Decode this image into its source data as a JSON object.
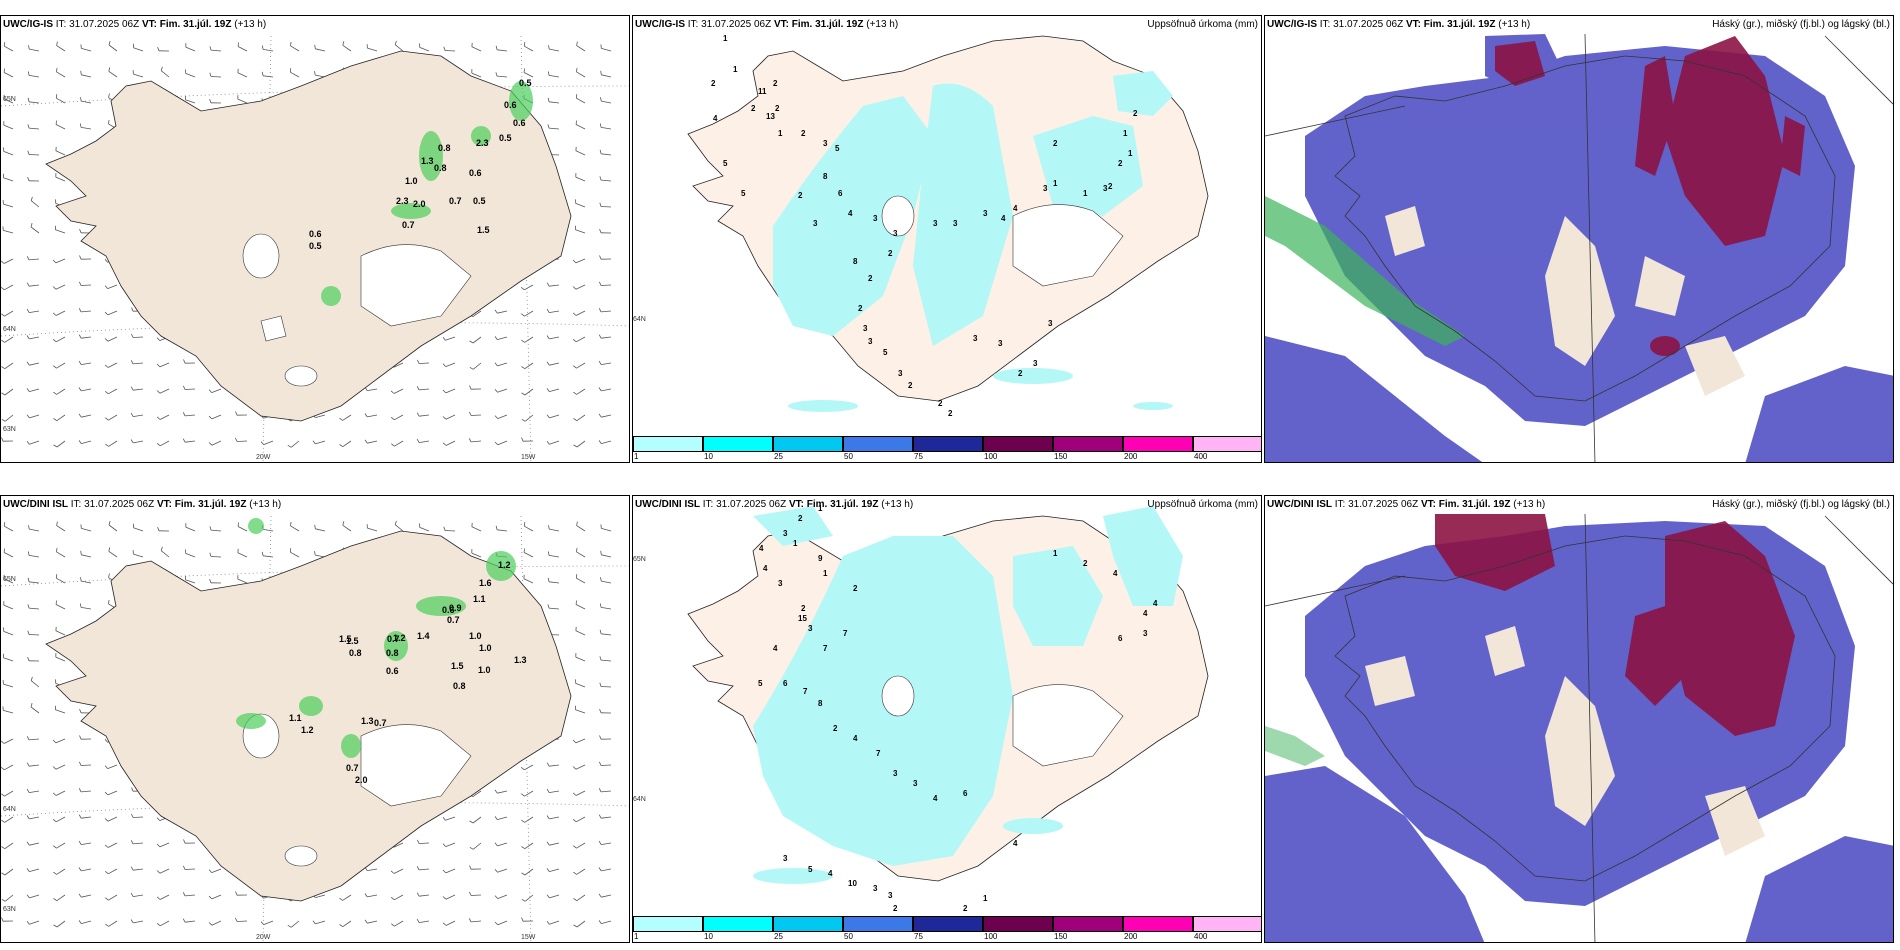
{
  "panels": [
    {
      "id": "p1",
      "model": "UWC/IG-IS",
      "it_label": "IT:",
      "it": "31.07.2025 06Z",
      "vt_label": "VT:",
      "vt": "Fim. 31.júl. 19Z",
      "lead": "(+13 h)",
      "title_right": "",
      "lat_labels": [
        "65N",
        "64N",
        "63N"
      ],
      "lon_labels": [
        "20W",
        "15W"
      ]
    },
    {
      "id": "p2",
      "model": "UWC/IG-IS",
      "it_label": "IT:",
      "it": "31.07.2025 06Z",
      "vt_label": "VT:",
      "vt": "Fim. 31.júl. 19Z",
      "lead": "(+13 h)",
      "title_right": "Uppsöfnuð úrkoma (mm)",
      "lat_labels": [
        "64N"
      ],
      "lon_labels": []
    },
    {
      "id": "p3",
      "model": "UWC/IG-IS",
      "it_label": "IT:",
      "it": "31.07.2025 06Z",
      "vt_label": "VT:",
      "vt": "Fim. 31.júl. 19Z",
      "lead": "(+13 h)",
      "title_right": "Háský (gr.), miðský (fj.bl.) og lágský (bl.)",
      "lat_labels": [],
      "lon_labels": []
    },
    {
      "id": "p4",
      "model": "UWC/DINI ISL",
      "it_label": "IT:",
      "it": "31.07.2025 06Z",
      "vt_label": "VT:",
      "vt": "Fim. 31.júl. 19Z",
      "lead": "(+13 h)",
      "title_right": "",
      "lat_labels": [
        "65N",
        "64N",
        "63N"
      ],
      "lon_labels": [
        "20W",
        "15W"
      ]
    },
    {
      "id": "p5",
      "model": "UWC/DINI ISL",
      "it_label": "IT:",
      "it": "31.07.2025 06Z",
      "vt_label": "VT:",
      "vt": "Fim. 31.júl. 19Z",
      "lead": "(+13 h)",
      "title_right": "Uppsöfnuð úrkoma (mm)",
      "lat_labels": [
        "65N",
        "64N"
      ],
      "lon_labels": []
    },
    {
      "id": "p6",
      "model": "UWC/DINI ISL",
      "it_label": "IT:",
      "it": "31.07.2025 06Z",
      "vt_label": "VT:",
      "vt": "Fim. 31.júl. 19Z",
      "lead": "(+13 h)",
      "title_right": "Háský (gr.), miðský (fj.bl.) og lágský (bl.)",
      "lat_labels": [],
      "lon_labels": []
    }
  ],
  "colorbar": {
    "ticks": [
      "1",
      "10",
      "25",
      "50",
      "75",
      "100",
      "150",
      "200",
      "400"
    ],
    "colors": [
      "#b3ffff",
      "#00ffff",
      "#00c8f0",
      "#3c78e6",
      "#1e2896",
      "#6e0050",
      "#a0007a",
      "#ff00b4",
      "#ffb4f5"
    ]
  },
  "colors": {
    "land": "#f2e6d8",
    "land_p2": "#fdf0e6",
    "precip": "#b3f7f7",
    "green": "#4ccf5c",
    "lowcloud": "#5a5ac8",
    "midcloud": "#3c6ef0",
    "highcloud": "#8c1444",
    "cloudbg": "#ffffff"
  },
  "panel1_labels": [
    "0.5",
    "0.6",
    "0.6",
    "0.5",
    "0.8",
    "2.3",
    "1.3",
    "0.6",
    "1.0",
    "0.8",
    "0.7",
    "0.5",
    "2.3",
    "2.0",
    "0.7",
    "1.5",
    "0.6",
    "0.5"
  ],
  "panel4_labels": [
    "1.2",
    "1.6",
    "1.1",
    "0.7",
    "0.6",
    "1.5",
    "1.0",
    "0.9",
    "1.4",
    "0.8",
    "0.7",
    "1.0",
    "1.5",
    "0.8",
    "1.2",
    "0.6",
    "1.0",
    "1.5",
    "1.3",
    "0.8",
    "1.1",
    "1.2",
    "1.3",
    "0.7",
    "0.7",
    "2.0"
  ],
  "panel2_labels": [
    "1",
    "1",
    "2",
    "2",
    "2",
    "2",
    "1",
    "2",
    "4",
    "11",
    "13",
    "3",
    "5",
    "8",
    "6",
    "5",
    "5",
    "2",
    "3",
    "4",
    "3",
    "3",
    "2",
    "8",
    "2",
    "3",
    "3",
    "3",
    "4",
    "4",
    "2",
    "3",
    "3",
    "5",
    "3",
    "2",
    "2",
    "2",
    "3",
    "3",
    "2",
    "3",
    "3",
    "3",
    "1",
    "1",
    "2",
    "2",
    "1",
    "2",
    "3",
    "1",
    "2"
  ],
  "panel5_labels": [
    "2",
    "1",
    "3",
    "4",
    "1",
    "4",
    "3",
    "9",
    "1",
    "2",
    "2",
    "3",
    "15",
    "7",
    "7",
    "4",
    "5",
    "6",
    "7",
    "8",
    "2",
    "4",
    "7",
    "3",
    "3",
    "4",
    "6",
    "4",
    "3",
    "5",
    "4",
    "10",
    "3",
    "3",
    "2",
    "2",
    "1",
    "1",
    "2",
    "4",
    "4",
    "4",
    "3",
    "6"
  ]
}
